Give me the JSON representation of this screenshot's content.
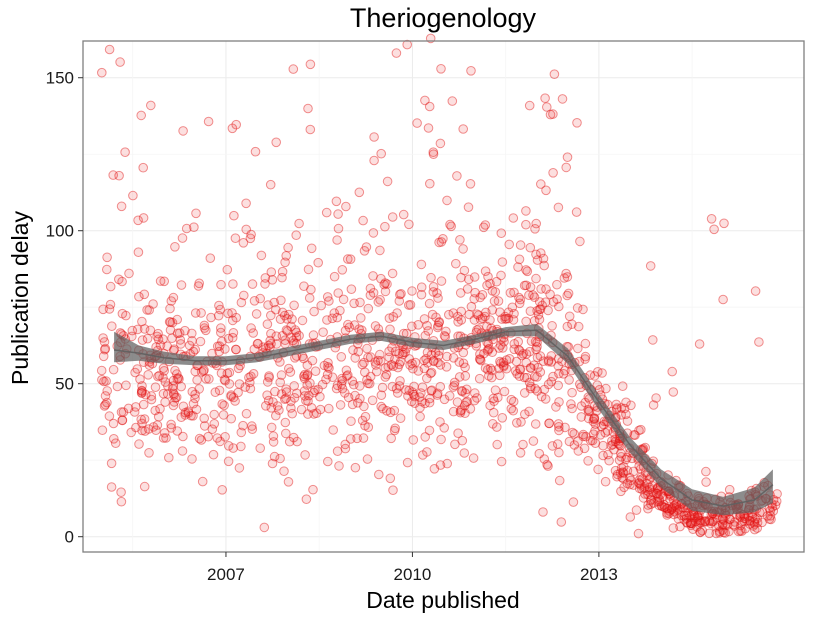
{
  "chart_data": {
    "type": "scatter",
    "title": "Theriogenology",
    "xlabel": "Date published",
    "ylabel": "Publication delay",
    "xlim": [
      2004.7,
      2016.3
    ],
    "ylim": [
      -5,
      162
    ],
    "x_ticks": [
      2007,
      2010,
      2013
    ],
    "x_tick_labels": [
      "2007",
      "2010",
      "2013"
    ],
    "y_ticks": [
      0,
      50,
      100,
      150
    ],
    "y_tick_labels": [
      "0",
      "50",
      "100",
      "150"
    ],
    "grid": true,
    "legend": "none",
    "point_color": "#e31a1c",
    "trend_color": "#5f5f5f",
    "trend": {
      "x": [
        2005.2,
        2005.6,
        2006.0,
        2006.5,
        2007.0,
        2007.5,
        2008.0,
        2008.5,
        2009.0,
        2009.5,
        2010.0,
        2010.5,
        2011.0,
        2011.5,
        2012.0,
        2012.5,
        2013.0,
        2013.5,
        2014.0,
        2014.5,
        2015.0,
        2015.5,
        2015.8
      ],
      "y": [
        61,
        60,
        58.5,
        57.5,
        57.5,
        58.5,
        60.5,
        62.5,
        64.5,
        65.5,
        63.5,
        62.5,
        64.5,
        67,
        67.5,
        59,
        44,
        30,
        19,
        12,
        10,
        12,
        17
      ],
      "lo": [
        57,
        57.5,
        56.5,
        56,
        56,
        57,
        59,
        61,
        63,
        64,
        62,
        61,
        63,
        65.5,
        65.5,
        56.5,
        41.5,
        27.5,
        16,
        8.5,
        7,
        8,
        11
      ],
      "hi": [
        67,
        62.5,
        60.5,
        59,
        59,
        60,
        62,
        64,
        66,
        67,
        65,
        64,
        66,
        68.5,
        69.5,
        61.5,
        46.5,
        32.5,
        22,
        15.5,
        13,
        16,
        22
      ]
    }
  }
}
